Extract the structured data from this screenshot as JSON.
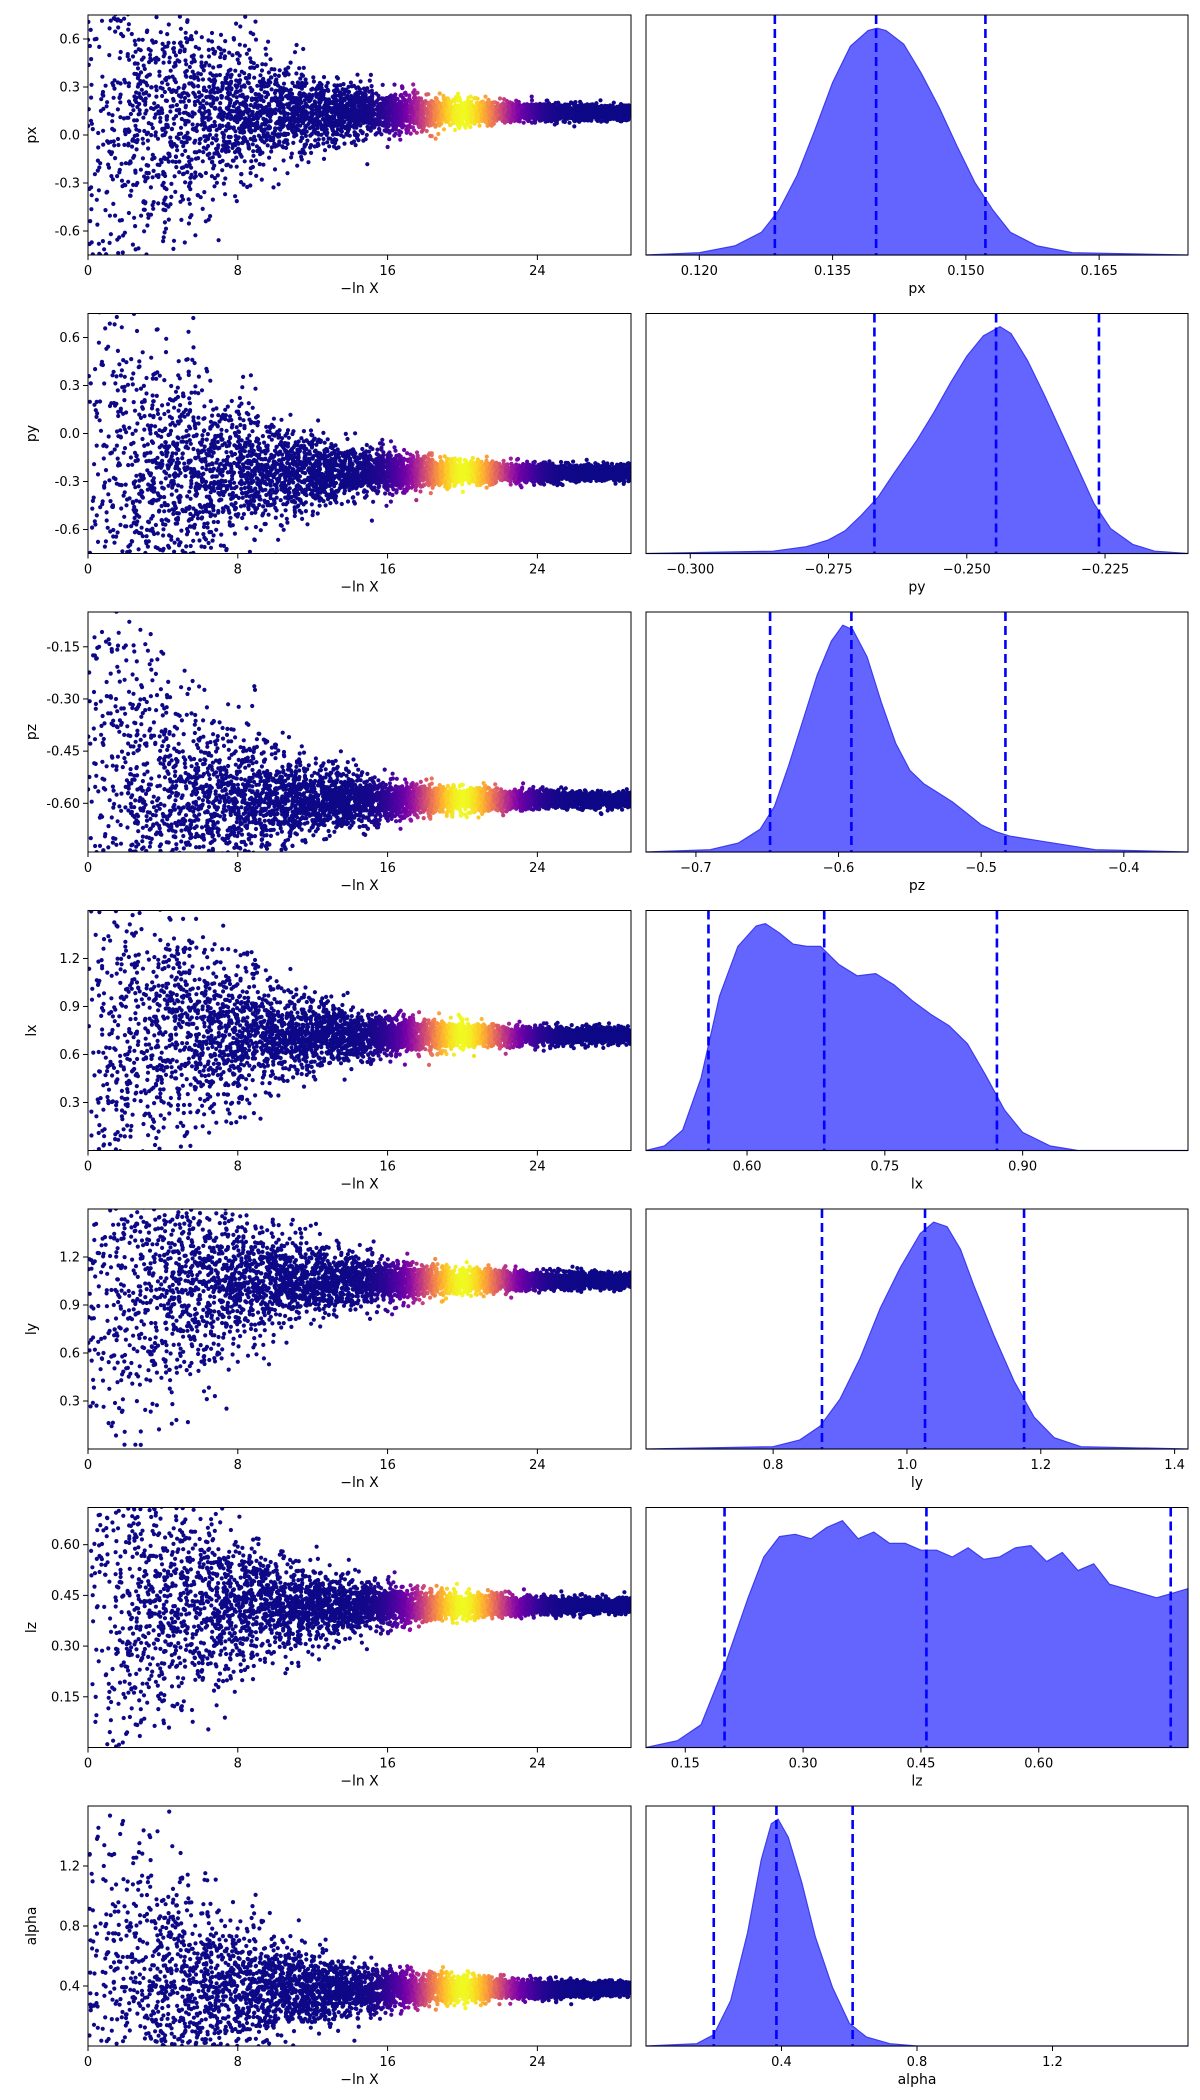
{
  "colors": {
    "density_fill": "#6464ff",
    "density_edge": "#3c3cf0",
    "quantile_line": "#0000ff",
    "colormap": [
      "#0d0887",
      "#46039f",
      "#7201a8",
      "#9c179e",
      "#bd3786",
      "#d8576b",
      "#ed7953",
      "#fb9f3a",
      "#fdca26",
      "#f0f921"
    ]
  },
  "trace": {
    "xlabel": "−ln X",
    "xlim": [
      0,
      29
    ],
    "xticks": [
      "0",
      "8",
      "16",
      "24"
    ],
    "xtick_values": [
      0,
      8,
      16,
      24
    ],
    "weight_peak_lnX": 20,
    "weight_width_lnX": 2.5
  },
  "chart_data": [
    {
      "type": "scatter",
      "param": "px",
      "ylim": [
        -0.75,
        0.75
      ],
      "yticks": [
        "-0.6",
        "-0.3",
        "0.0",
        "0.3",
        "0.6"
      ],
      "ytick_values": [
        -0.6,
        -0.3,
        0.0,
        0.3,
        0.6
      ],
      "converged_value": 0.14,
      "hist": {
        "xlabel": "px",
        "xlim": [
          0.114,
          0.175
        ],
        "xticks": [
          "0.120",
          "0.135",
          "0.150",
          "0.165"
        ],
        "xtick_values": [
          0.12,
          0.135,
          0.15,
          0.165
        ],
        "quantiles": [
          0.1285,
          0.1399,
          0.1522
        ],
        "density": [
          [
            0.114,
            0.0
          ],
          [
            0.12,
            0.01
          ],
          [
            0.124,
            0.04
          ],
          [
            0.127,
            0.1
          ],
          [
            0.129,
            0.2
          ],
          [
            0.131,
            0.35
          ],
          [
            0.133,
            0.55
          ],
          [
            0.135,
            0.76
          ],
          [
            0.137,
            0.92
          ],
          [
            0.139,
            0.99
          ],
          [
            0.14,
            1.0
          ],
          [
            0.141,
            0.99
          ],
          [
            0.143,
            0.93
          ],
          [
            0.145,
            0.8
          ],
          [
            0.147,
            0.65
          ],
          [
            0.149,
            0.48
          ],
          [
            0.151,
            0.32
          ],
          [
            0.153,
            0.2
          ],
          [
            0.155,
            0.1
          ],
          [
            0.158,
            0.04
          ],
          [
            0.162,
            0.01
          ],
          [
            0.175,
            0.0
          ]
        ]
      }
    },
    {
      "type": "scatter",
      "param": "py",
      "ylim": [
        -0.75,
        0.75
      ],
      "yticks": [
        "-0.6",
        "-0.3",
        "0.0",
        "0.3",
        "0.6"
      ],
      "ytick_values": [
        -0.6,
        -0.3,
        0.0,
        0.3,
        0.6
      ],
      "converged_value": -0.245,
      "hist": {
        "xlabel": "py",
        "xlim": [
          -0.308,
          -0.21
        ],
        "xticks": [
          "−0.300",
          "−0.275",
          "−0.250",
          "−0.225"
        ],
        "xtick_values": [
          -0.3,
          -0.275,
          -0.25,
          -0.225
        ],
        "quantiles": [
          -0.2667,
          -0.2447,
          -0.2261
        ],
        "density": [
          [
            -0.308,
            0.0
          ],
          [
            -0.285,
            0.01
          ],
          [
            -0.279,
            0.03
          ],
          [
            -0.275,
            0.06
          ],
          [
            -0.272,
            0.1
          ],
          [
            -0.269,
            0.17
          ],
          [
            -0.266,
            0.25
          ],
          [
            -0.263,
            0.36
          ],
          [
            -0.259,
            0.5
          ],
          [
            -0.256,
            0.62
          ],
          [
            -0.253,
            0.75
          ],
          [
            -0.25,
            0.87
          ],
          [
            -0.247,
            0.96
          ],
          [
            -0.244,
            1.0
          ],
          [
            -0.242,
            0.97
          ],
          [
            -0.239,
            0.85
          ],
          [
            -0.236,
            0.7
          ],
          [
            -0.233,
            0.54
          ],
          [
            -0.23,
            0.38
          ],
          [
            -0.227,
            0.22
          ],
          [
            -0.224,
            0.11
          ],
          [
            -0.22,
            0.04
          ],
          [
            -0.216,
            0.01
          ],
          [
            -0.21,
            0.0
          ]
        ]
      }
    },
    {
      "type": "scatter",
      "param": "pz",
      "ylim": [
        -0.74,
        -0.05
      ],
      "yticks": [
        "-0.60",
        "-0.45",
        "-0.30",
        "-0.15"
      ],
      "ytick_values": [
        -0.6,
        -0.45,
        -0.3,
        -0.15
      ],
      "converged_value": -0.59,
      "hist": {
        "xlabel": "pz",
        "xlim": [
          -0.735,
          -0.355
        ],
        "xticks": [
          "−0.7",
          "−0.6",
          "−0.5",
          "−0.4"
        ],
        "xtick_values": [
          -0.7,
          -0.6,
          -0.5,
          -0.4
        ],
        "quantiles": [
          -0.648,
          -0.591,
          -0.483
        ],
        "density": [
          [
            -0.735,
            0.0
          ],
          [
            -0.69,
            0.01
          ],
          [
            -0.67,
            0.04
          ],
          [
            -0.655,
            0.1
          ],
          [
            -0.645,
            0.2
          ],
          [
            -0.635,
            0.38
          ],
          [
            -0.625,
            0.58
          ],
          [
            -0.615,
            0.78
          ],
          [
            -0.605,
            0.93
          ],
          [
            -0.597,
            1.0
          ],
          [
            -0.59,
            0.98
          ],
          [
            -0.58,
            0.86
          ],
          [
            -0.57,
            0.66
          ],
          [
            -0.56,
            0.48
          ],
          [
            -0.55,
            0.36
          ],
          [
            -0.54,
            0.3
          ],
          [
            -0.53,
            0.26
          ],
          [
            -0.52,
            0.22
          ],
          [
            -0.51,
            0.17
          ],
          [
            -0.5,
            0.12
          ],
          [
            -0.49,
            0.09
          ],
          [
            -0.48,
            0.07
          ],
          [
            -0.46,
            0.05
          ],
          [
            -0.44,
            0.03
          ],
          [
            -0.42,
            0.01
          ],
          [
            -0.355,
            0.0
          ]
        ]
      }
    },
    {
      "type": "scatter",
      "param": "lx",
      "ylim": [
        0.0,
        1.5
      ],
      "yticks": [
        "0.3",
        "0.6",
        "0.9",
        "1.2"
      ],
      "ytick_values": [
        0.3,
        0.6,
        0.9,
        1.2
      ],
      "converged_value": 0.72,
      "hist": {
        "xlabel": "lx",
        "xlim": [
          0.49,
          1.08
        ],
        "xticks": [
          "0.60",
          "0.75",
          "0.90"
        ],
        "xtick_values": [
          0.6,
          0.75,
          0.9
        ],
        "quantiles": [
          0.558,
          0.684,
          0.872
        ],
        "density": [
          [
            0.49,
            0.0
          ],
          [
            0.51,
            0.02
          ],
          [
            0.53,
            0.09
          ],
          [
            0.55,
            0.32
          ],
          [
            0.57,
            0.68
          ],
          [
            0.59,
            0.9
          ],
          [
            0.61,
            0.99
          ],
          [
            0.62,
            1.0
          ],
          [
            0.635,
            0.96
          ],
          [
            0.65,
            0.91
          ],
          [
            0.665,
            0.9
          ],
          [
            0.68,
            0.9
          ],
          [
            0.7,
            0.82
          ],
          [
            0.72,
            0.77
          ],
          [
            0.74,
            0.78
          ],
          [
            0.76,
            0.73
          ],
          [
            0.78,
            0.66
          ],
          [
            0.8,
            0.6
          ],
          [
            0.82,
            0.55
          ],
          [
            0.84,
            0.47
          ],
          [
            0.86,
            0.33
          ],
          [
            0.88,
            0.18
          ],
          [
            0.9,
            0.08
          ],
          [
            0.93,
            0.02
          ],
          [
            0.96,
            0.0
          ],
          [
            1.08,
            0.0
          ]
        ]
      }
    },
    {
      "type": "scatter",
      "param": "ly",
      "ylim": [
        0.0,
        1.5
      ],
      "yticks": [
        "0.3",
        "0.6",
        "0.9",
        "1.2"
      ],
      "ytick_values": [
        0.3,
        0.6,
        0.9,
        1.2
      ],
      "converged_value": 1.05,
      "hist": {
        "xlabel": "ly",
        "xlim": [
          0.61,
          1.42
        ],
        "xticks": [
          "0.8",
          "1.0",
          "1.2",
          "1.4"
        ],
        "xtick_values": [
          0.8,
          1.0,
          1.2,
          1.4
        ],
        "quantiles": [
          0.873,
          1.027,
          1.175
        ],
        "density": [
          [
            0.61,
            0.0
          ],
          [
            0.8,
            0.01
          ],
          [
            0.84,
            0.04
          ],
          [
            0.87,
            0.1
          ],
          [
            0.9,
            0.22
          ],
          [
            0.93,
            0.4
          ],
          [
            0.96,
            0.62
          ],
          [
            0.99,
            0.8
          ],
          [
            1.02,
            0.95
          ],
          [
            1.04,
            1.0
          ],
          [
            1.06,
            0.98
          ],
          [
            1.08,
            0.88
          ],
          [
            1.1,
            0.72
          ],
          [
            1.13,
            0.5
          ],
          [
            1.16,
            0.3
          ],
          [
            1.19,
            0.14
          ],
          [
            1.22,
            0.05
          ],
          [
            1.26,
            0.01
          ],
          [
            1.42,
            0.0
          ]
        ]
      }
    },
    {
      "type": "scatter",
      "param": "lz",
      "ylim": [
        0.0,
        0.71
      ],
      "yticks": [
        "0.15",
        "0.30",
        "0.45",
        "0.60"
      ],
      "ytick_values": [
        0.15,
        0.3,
        0.45,
        0.6
      ],
      "converged_value": 0.42,
      "hist": {
        "xlabel": "lz",
        "xlim": [
          0.1,
          0.79
        ],
        "xticks": [
          "0.15",
          "0.30",
          "0.45",
          "0.60"
        ],
        "xtick_values": [
          0.15,
          0.3,
          0.45,
          0.6
        ],
        "quantiles": [
          0.2,
          0.457,
          0.768
        ],
        "density": [
          [
            0.1,
            0.0
          ],
          [
            0.14,
            0.03
          ],
          [
            0.17,
            0.1
          ],
          [
            0.2,
            0.36
          ],
          [
            0.23,
            0.66
          ],
          [
            0.25,
            0.84
          ],
          [
            0.27,
            0.93
          ],
          [
            0.29,
            0.94
          ],
          [
            0.31,
            0.92
          ],
          [
            0.33,
            0.97
          ],
          [
            0.35,
            1.0
          ],
          [
            0.37,
            0.92
          ],
          [
            0.39,
            0.95
          ],
          [
            0.41,
            0.9
          ],
          [
            0.43,
            0.9
          ],
          [
            0.45,
            0.87
          ],
          [
            0.47,
            0.87
          ],
          [
            0.49,
            0.84
          ],
          [
            0.51,
            0.88
          ],
          [
            0.53,
            0.83
          ],
          [
            0.55,
            0.84
          ],
          [
            0.57,
            0.88
          ],
          [
            0.59,
            0.89
          ],
          [
            0.61,
            0.82
          ],
          [
            0.63,
            0.86
          ],
          [
            0.65,
            0.78
          ],
          [
            0.67,
            0.81
          ],
          [
            0.69,
            0.72
          ],
          [
            0.71,
            0.7
          ],
          [
            0.73,
            0.68
          ],
          [
            0.75,
            0.66
          ],
          [
            0.77,
            0.68
          ],
          [
            0.79,
            0.7
          ]
        ]
      }
    },
    {
      "type": "scatter",
      "param": "alpha",
      "ylim": [
        0.0,
        1.6
      ],
      "yticks": [
        "0.4",
        "0.8",
        "1.2"
      ],
      "ytick_values": [
        0.4,
        0.8,
        1.2
      ],
      "converged_value": 0.38,
      "hist": {
        "xlabel": "alpha",
        "xlim": [
          0.0,
          1.6
        ],
        "xticks": [
          "0.4",
          "0.8",
          "1.2"
        ],
        "xtick_values": [
          0.4,
          0.8,
          1.2
        ],
        "quantiles": [
          0.2,
          0.385,
          0.61
        ],
        "density": [
          [
            0.0,
            0.0
          ],
          [
            0.15,
            0.01
          ],
          [
            0.2,
            0.05
          ],
          [
            0.25,
            0.2
          ],
          [
            0.3,
            0.5
          ],
          [
            0.34,
            0.82
          ],
          [
            0.37,
            0.98
          ],
          [
            0.39,
            1.0
          ],
          [
            0.42,
            0.92
          ],
          [
            0.46,
            0.72
          ],
          [
            0.5,
            0.48
          ],
          [
            0.55,
            0.26
          ],
          [
            0.6,
            0.1
          ],
          [
            0.65,
            0.04
          ],
          [
            0.72,
            0.01
          ],
          [
            0.8,
            0.0
          ],
          [
            1.6,
            0.0
          ]
        ]
      }
    }
  ]
}
